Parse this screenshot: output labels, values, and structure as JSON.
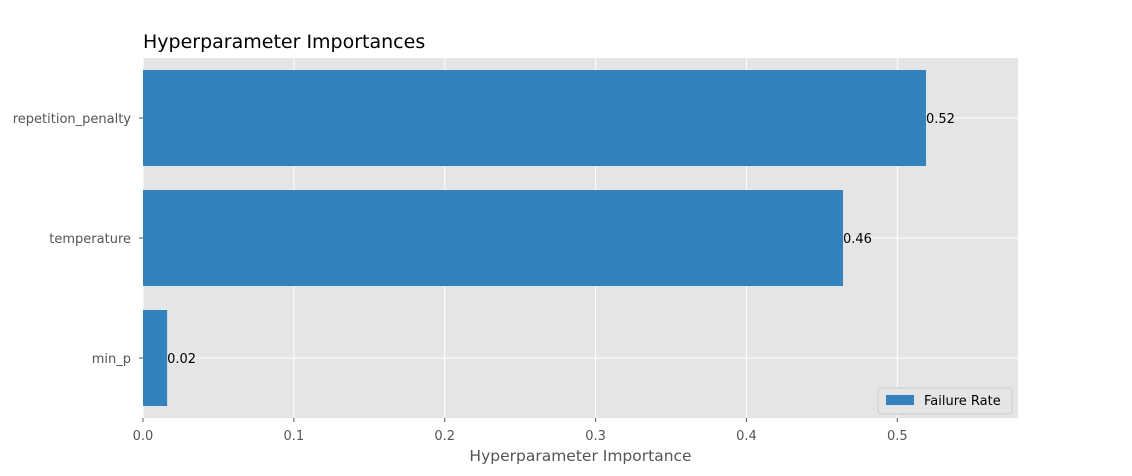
{
  "chart_data": {
    "type": "bar",
    "orientation": "horizontal",
    "title": "Hyperparameter Importances",
    "xlabel": "Hyperparameter Importance",
    "ylabel": "",
    "categories": [
      "repetition_penalty",
      "temperature",
      "min_p"
    ],
    "series": [
      {
        "name": "Failure Rate",
        "values": [
          0.519,
          0.464,
          0.016
        ],
        "labels": [
          "0.52",
          "0.46",
          "0.02"
        ],
        "color": "#3182bd"
      }
    ],
    "xlim": [
      0,
      0.58
    ],
    "xticks": [
      0,
      0.1,
      0.2,
      0.3,
      0.4,
      0.5
    ],
    "xtick_labels": [
      "0.0",
      "0.1",
      "0.2",
      "0.3",
      "0.4",
      "0.5"
    ],
    "grid": true,
    "legend_position": "lower-right",
    "colors": {
      "plot_background": "#e5e5e5",
      "grid": "#ffffff",
      "bar": "#3182bd",
      "tick_text": "#555555",
      "title_text": "#000000"
    }
  }
}
